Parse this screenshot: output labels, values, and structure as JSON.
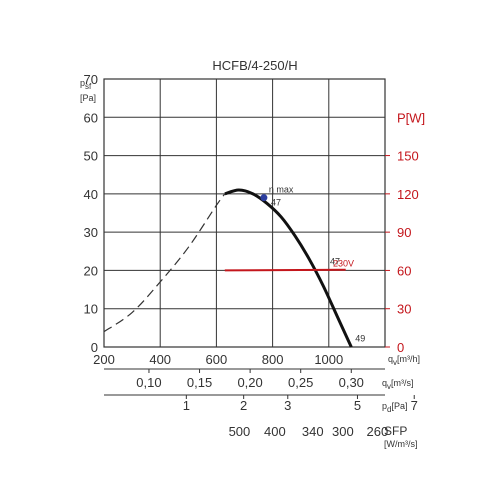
{
  "chart_data": {
    "type": "line",
    "title": "HCFB/4-250/H",
    "left_axis": {
      "symbol": "p",
      "subscript": "sf",
      "unit": "[Pa]",
      "ticks": [
        0,
        10,
        20,
        30,
        40,
        50,
        60,
        70
      ],
      "range": [
        0,
        70
      ]
    },
    "right_axis": {
      "label": "P[W]",
      "ticks": [
        0,
        30,
        60,
        90,
        120,
        150
      ],
      "range": [
        0,
        210
      ],
      "color": "#c4161c"
    },
    "x_axis": {
      "ticks": [
        200,
        400,
        600,
        800,
        1000
      ],
      "range": [
        200,
        1200
      ],
      "label_symbol": "q",
      "label_subscript": "v",
      "label_unit": "[m³/h]"
    },
    "secondary_scales": [
      {
        "symbol": "q",
        "subscript": "v",
        "unit": "[m³/s]",
        "marks": [
          {
            "label": "0,10",
            "x": 360
          },
          {
            "label": "0,15",
            "x": 540
          },
          {
            "label": "0,20",
            "x": 720
          },
          {
            "label": "0,25",
            "x": 900
          },
          {
            "label": "0,30",
            "x": 1080
          }
        ]
      },
      {
        "symbol": "p",
        "subscript": "d",
        "unit": "[Pa]",
        "marks": [
          {
            "label": "1",
            "x": 493
          },
          {
            "label": "2",
            "x": 697
          },
          {
            "label": "3",
            "x": 854
          },
          {
            "label": "5",
            "x": 1102
          },
          {
            "label": "7",
            "x": 1304
          }
        ]
      },
      {
        "symbol": "SFP",
        "unit": "[W/m³/s]",
        "marks": [
          {
            "label": "500",
            "x": 682
          },
          {
            "label": "400",
            "x": 808
          },
          {
            "label": "340",
            "x": 943
          },
          {
            "label": "300",
            "x": 1050
          },
          {
            "label": "260",
            "x": 1173
          }
        ]
      }
    ],
    "series": [
      {
        "type": "pressure_unstable_dashed",
        "color": "#333333",
        "x": [
          200,
          300,
          400,
          500,
          600,
          630
        ],
        "y": [
          4,
          9,
          17,
          26,
          37,
          40
        ]
      },
      {
        "type": "pressure_stable",
        "color": "#111111",
        "x": [
          630,
          680,
          730,
          780,
          830,
          880,
          930,
          980,
          1030,
          1080
        ],
        "y": [
          40,
          41,
          40,
          37.5,
          34,
          29,
          23,
          16,
          8,
          0
        ]
      },
      {
        "name": "230V",
        "type": "power",
        "axis": "right",
        "color": "#c4161c",
        "x": [
          630,
          1060
        ],
        "y": [
          60,
          60.5
        ]
      }
    ],
    "annotations": [
      {
        "text": "η max",
        "x": 769,
        "y": 39,
        "marker": true,
        "marker_color": "#2c3e9e"
      },
      {
        "text": "47",
        "x": 780,
        "y": 37
      },
      {
        "text": "47",
        "x": 990,
        "y": 21.5
      },
      {
        "text": "49",
        "x": 1080,
        "y": 1.5
      },
      {
        "text": "230V",
        "x": 1015,
        "y": 63,
        "color": "#c4161c"
      }
    ],
    "grid": true
  }
}
